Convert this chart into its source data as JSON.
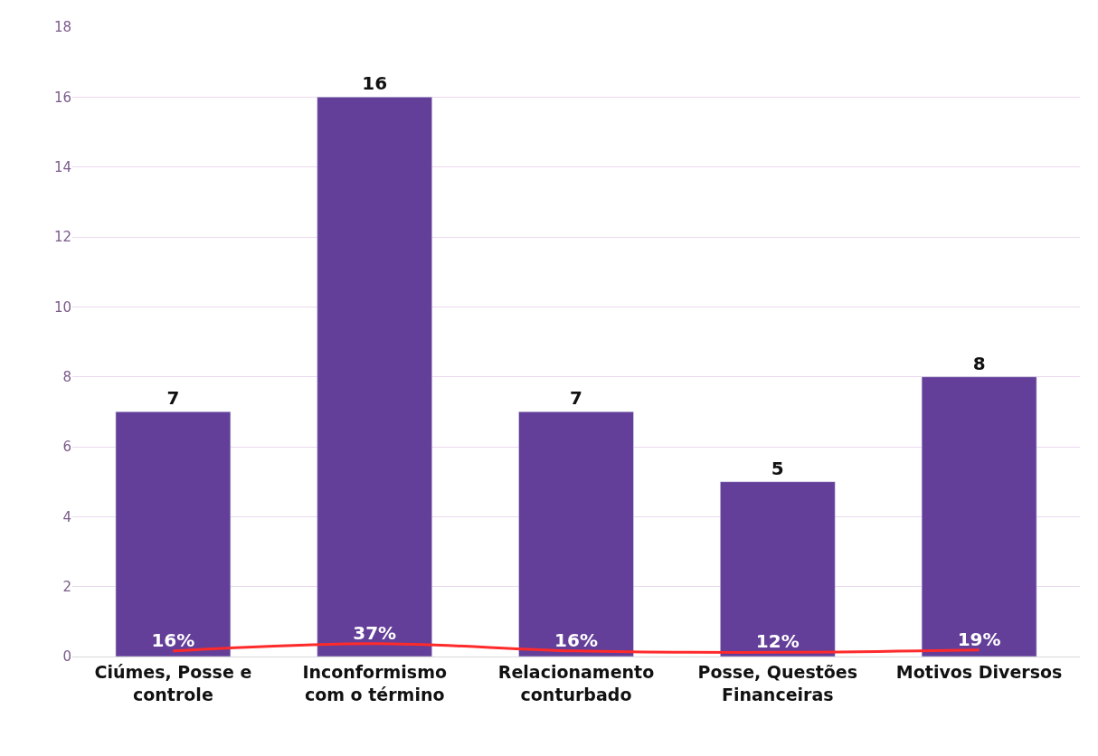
{
  "chart_data": {
    "type": "bar",
    "categories": [
      "Ciúmes, Posse e\ncontrole",
      "Inconformismo\ncom o término",
      "Relacionamento\nconturbado",
      "Posse, Questões\nFinanceiras",
      "Motivos Diversos"
    ],
    "series": [
      {
        "color": "#633f99",
        "values": [
          7,
          16,
          7,
          5,
          8
        ],
        "value_labels": [
          "7",
          "16",
          "7",
          "5",
          "8"
        ]
      },
      {
        "type": "line",
        "color": "#ff2a2a",
        "values": [
          0.16,
          0.37,
          0.16,
          0.12,
          0.19
        ],
        "value_labels": [
          "16%",
          "37%",
          "16%",
          "12%",
          "19%"
        ]
      }
    ],
    "ylim": [
      0,
      18
    ],
    "yticks": [
      0,
      2,
      4,
      6,
      8,
      10,
      12,
      14,
      16,
      18
    ],
    "grid": "y"
  }
}
